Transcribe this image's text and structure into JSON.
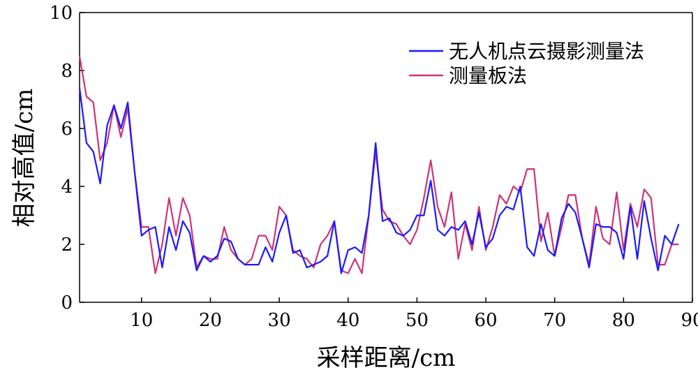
{
  "chart_data": {
    "type": "line",
    "title": "",
    "xlabel": "采样距离/cm",
    "ylabel": "相对高值/cm",
    "xlim": [
      1,
      90
    ],
    "ylim": [
      0,
      10
    ],
    "x_ticks": [
      10,
      20,
      30,
      40,
      50,
      60,
      70,
      80,
      90
    ],
    "y_ticks": [
      0,
      2,
      4,
      6,
      8,
      10
    ],
    "legend_position": "top-right",
    "grid": false,
    "x": [
      1,
      2,
      3,
      4,
      5,
      6,
      7,
      8,
      9,
      10,
      11,
      12,
      13,
      14,
      15,
      16,
      17,
      18,
      19,
      20,
      21,
      22,
      23,
      24,
      25,
      26,
      27,
      28,
      29,
      30,
      31,
      32,
      33,
      34,
      35,
      36,
      37,
      38,
      39,
      40,
      41,
      42,
      43,
      44,
      45,
      46,
      47,
      48,
      49,
      50,
      51,
      52,
      53,
      54,
      55,
      56,
      57,
      58,
      59,
      60,
      61,
      62,
      63,
      64,
      65,
      66,
      67,
      68,
      69,
      70,
      71,
      72,
      73,
      74,
      75,
      76,
      77,
      78,
      79,
      80,
      81,
      82,
      83,
      84,
      85,
      86,
      87,
      88
    ],
    "series": [
      {
        "name": "无人机点云摄影测量法",
        "color": "#1a1aff",
        "values": [
          7.4,
          5.5,
          5.2,
          4.1,
          6.1,
          6.8,
          6.0,
          6.9,
          4.5,
          2.3,
          2.5,
          2.6,
          1.2,
          2.6,
          1.8,
          2.8,
          2.4,
          1.1,
          1.6,
          1.4,
          1.6,
          2.2,
          2.1,
          1.5,
          1.3,
          1.3,
          1.3,
          1.9,
          1.4,
          2.4,
          3.0,
          1.7,
          1.8,
          1.2,
          1.3,
          1.4,
          1.6,
          2.8,
          1.0,
          1.8,
          1.9,
          1.7,
          3.0,
          5.5,
          2.8,
          2.9,
          2.4,
          2.3,
          2.5,
          3.0,
          3.0,
          4.2,
          2.5,
          2.3,
          2.6,
          2.5,
          2.8,
          2.0,
          3.1,
          1.9,
          2.2,
          3.0,
          3.3,
          3.2,
          4.0,
          1.9,
          1.6,
          2.7,
          1.8,
          1.6,
          2.9,
          3.4,
          3.1,
          2.2,
          1.2,
          2.7,
          2.6,
          2.6,
          2.4,
          1.5,
          3.3,
          1.5,
          3.5,
          2.2,
          1.1,
          2.3,
          2.0,
          2.7
        ]
      },
      {
        "name": "测量板法",
        "color": "#cc3377",
        "values": [
          8.5,
          7.1,
          6.9,
          4.9,
          5.5,
          6.8,
          5.7,
          6.7,
          4.5,
          2.6,
          2.6,
          1.0,
          2.0,
          3.6,
          2.3,
          3.6,
          3.0,
          1.2,
          1.6,
          1.5,
          1.5,
          2.6,
          1.8,
          1.5,
          1.3,
          1.5,
          2.3,
          2.3,
          1.8,
          3.3,
          3.0,
          1.8,
          1.6,
          1.5,
          1.2,
          2.0,
          2.3,
          2.8,
          1.1,
          1.0,
          1.5,
          1.0,
          3.0,
          5.2,
          3.2,
          2.8,
          2.7,
          2.3,
          2.0,
          2.5,
          3.6,
          4.9,
          3.3,
          2.6,
          3.8,
          1.5,
          2.7,
          1.8,
          3.3,
          1.8,
          2.6,
          3.7,
          3.4,
          4.0,
          3.8,
          4.6,
          4.6,
          2.1,
          3.1,
          1.6,
          2.6,
          3.7,
          3.7,
          2.2,
          1.3,
          3.3,
          2.2,
          2.0,
          3.8,
          1.8,
          3.4,
          2.6,
          3.9,
          3.6,
          1.3,
          1.3,
          2.0,
          2.0
        ]
      }
    ]
  }
}
